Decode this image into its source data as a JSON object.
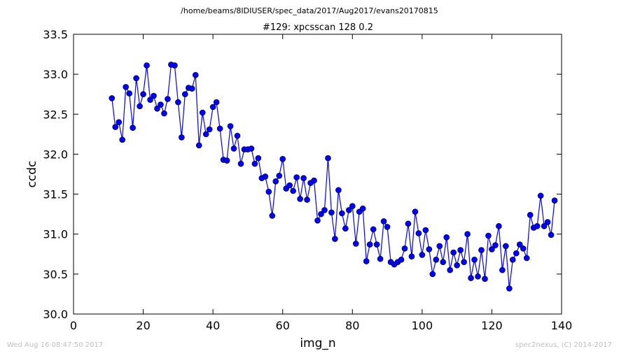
{
  "chart_data": {
    "type": "line",
    "suptitle": "/home/beams/8IDIUSER/spec_data/2017/Aug2017/evans20170815",
    "title": "#129: xpcsscan 128 0.2",
    "xlabel": "img_n",
    "ylabel": "ccdc",
    "xlim": [
      0,
      140
    ],
    "ylim": [
      30.0,
      33.5
    ],
    "xticks": [
      0,
      20,
      40,
      60,
      80,
      100,
      120,
      140
    ],
    "xtick_labels": [
      "0",
      "20",
      "40",
      "60",
      "80",
      "100",
      "120",
      "140"
    ],
    "yticks": [
      30.0,
      30.5,
      31.0,
      31.5,
      32.0,
      32.5,
      33.0,
      33.5
    ],
    "ytick_labels": [
      "30.0",
      "30.5",
      "31.0",
      "31.5",
      "32.0",
      "32.5",
      "33.0",
      "33.5"
    ],
    "grid": false,
    "line_color": "#0000ff",
    "marker_color": "#0000ff",
    "marker_edge_color": "#000000",
    "x": [
      11,
      12,
      13,
      14,
      15,
      16,
      17,
      18,
      19,
      20,
      21,
      22,
      23,
      24,
      25,
      26,
      27,
      28,
      29,
      30,
      31,
      32,
      33,
      34,
      35,
      36,
      37,
      38,
      39,
      40,
      41,
      42,
      43,
      44,
      45,
      46,
      47,
      48,
      49,
      50,
      51,
      52,
      53,
      54,
      55,
      56,
      57,
      58,
      59,
      60,
      61,
      62,
      63,
      64,
      65,
      66,
      67,
      68,
      69,
      70,
      71,
      72,
      73,
      74,
      75,
      76,
      77,
      78,
      79,
      80,
      81,
      82,
      83,
      84,
      85,
      86,
      87,
      88,
      89,
      90,
      91,
      92,
      93,
      94,
      95,
      96,
      97,
      98,
      99,
      100,
      101,
      102,
      103,
      104,
      105,
      106,
      107,
      108,
      109,
      110,
      111,
      112,
      113,
      114,
      115,
      116,
      117,
      118,
      119,
      120,
      121,
      122,
      123,
      124,
      125,
      126,
      127,
      128,
      129,
      130,
      131,
      132,
      133,
      134,
      135,
      136,
      137,
      138
    ],
    "y": [
      32.7,
      32.34,
      32.4,
      32.18,
      32.84,
      32.76,
      32.33,
      32.95,
      32.6,
      32.75,
      33.11,
      32.68,
      32.73,
      32.57,
      32.62,
      32.51,
      32.69,
      33.12,
      33.11,
      32.65,
      32.21,
      32.75,
      32.83,
      32.82,
      32.99,
      32.11,
      32.52,
      32.25,
      32.31,
      32.59,
      32.65,
      32.32,
      31.93,
      31.92,
      32.35,
      32.07,
      32.23,
      31.88,
      32.06,
      32.06,
      32.07,
      31.88,
      31.95,
      31.7,
      31.72,
      31.53,
      31.23,
      31.66,
      31.73,
      31.94,
      31.57,
      31.61,
      31.54,
      31.71,
      31.44,
      31.7,
      31.43,
      31.64,
      31.67,
      31.17,
      31.25,
      31.3,
      31.95,
      31.27,
      30.94,
      31.55,
      31.26,
      31.07,
      31.3,
      31.35,
      30.88,
      31.28,
      31.32,
      30.66,
      30.87,
      31.06,
      30.87,
      30.69,
      31.16,
      31.09,
      30.65,
      30.62,
      30.65,
      30.68,
      30.82,
      31.13,
      30.72,
      31.28,
      31.01,
      30.74,
      31.05,
      30.81,
      30.5,
      30.68,
      30.85,
      30.65,
      30.96,
      30.55,
      30.77,
      30.61,
      30.8,
      30.65,
      31.0,
      30.45,
      30.68,
      30.47,
      30.8,
      30.44,
      30.98,
      30.81,
      30.86,
      31.1,
      30.55,
      30.85,
      30.32,
      30.68,
      30.76,
      30.87,
      30.82,
      30.7,
      31.24,
      31.08,
      31.1,
      31.48,
      31.1,
      31.15,
      30.99,
      31.42
    ]
  },
  "footer": {
    "timestamp": "Wed Aug 16 08:47:50 2017",
    "credit": "spec2nexus, (C) 2014-2017"
  }
}
